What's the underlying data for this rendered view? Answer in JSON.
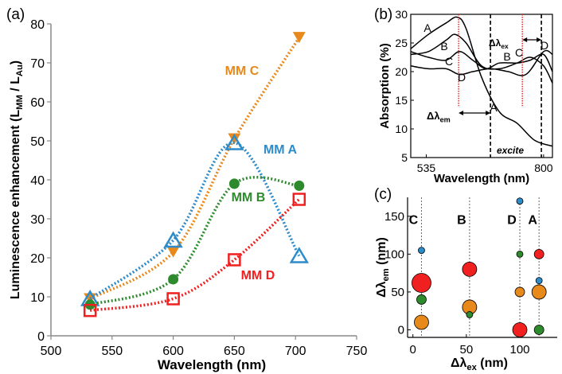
{
  "chart_data": [
    {
      "panel": "(a)",
      "type": "line",
      "title": "",
      "xlabel": "Wavelength (nm)",
      "ylabel": "Luminescence enhancement (L",
      "ylabel_sub1": "MM",
      "ylabel_mid": " / L",
      "ylabel_sub2": "Au",
      "ylabel_end": ")",
      "xlim": [
        500,
        750
      ],
      "ylim": [
        0,
        80
      ],
      "xticks": [
        "500",
        "550",
        "600",
        "650",
        "700",
        "750"
      ],
      "yticks": [
        "0",
        "10",
        "20",
        "30",
        "40",
        "50",
        "60",
        "70",
        "80"
      ],
      "series": [
        {
          "name": "MM C",
          "color": "#E8891B",
          "marker": "triangle-down",
          "x": [
            532,
            600,
            650,
            703
          ],
          "y": [
            9.5,
            21.5,
            50.5,
            76.5
          ]
        },
        {
          "name": "MM A",
          "color": "#2E8BC9",
          "marker": "triangle-up-open",
          "x": [
            532,
            600,
            650,
            703
          ],
          "y": [
            9.5,
            24.5,
            49.5,
            20.5
          ]
        },
        {
          "name": "MM B",
          "color": "#2D8A2D",
          "marker": "circle",
          "x": [
            532,
            600,
            650,
            703
          ],
          "y": [
            8.0,
            14.5,
            39.0,
            38.5
          ]
        },
        {
          "name": "MM D",
          "color": "#F02020",
          "marker": "square-open",
          "x": [
            532,
            600,
            650,
            703
          ],
          "y": [
            6.5,
            9.5,
            19.5,
            35.0
          ]
        }
      ]
    },
    {
      "panel": "(b)",
      "type": "line",
      "xlabel": "Wavelength (nm)",
      "ylabel": "Absorption (%)",
      "xlim": [
        500,
        820
      ],
      "ylim": [
        5,
        30
      ],
      "xticks": [
        "535",
        "800"
      ],
      "yticks": [
        "5",
        "10",
        "15",
        "20",
        "25",
        "30"
      ],
      "curve_labels": [
        "A",
        "B",
        "C",
        "D"
      ],
      "series": [
        {
          "name": "A",
          "x": [
            500,
            540,
            580,
            605,
            625,
            660,
            700,
            740,
            780,
            820
          ],
          "y": [
            24,
            26.5,
            28.5,
            29.5,
            27.5,
            19,
            13,
            11,
            8,
            7
          ]
        },
        {
          "name": "B",
          "x": [
            500,
            540,
            580,
            600,
            625,
            660,
            700,
            740,
            770,
            800,
            820
          ],
          "y": [
            23,
            23.5,
            25.5,
            26.5,
            25,
            21,
            20.5,
            21.5,
            22.5,
            21,
            18
          ]
        },
        {
          "name": "C",
          "x": [
            500,
            540,
            580,
            610,
            640,
            670,
            700,
            740,
            770,
            800,
            820
          ],
          "y": [
            23.5,
            22.5,
            22,
            23.5,
            22,
            20.5,
            21.5,
            21.5,
            22,
            23,
            20
          ]
        },
        {
          "name": "D",
          "x": [
            500,
            540,
            580,
            610,
            640,
            680,
            720,
            760,
            800,
            820
          ],
          "y": [
            21,
            20.5,
            20.5,
            19.5,
            20,
            20.5,
            20,
            19.5,
            23.5,
            23
          ]
        }
      ],
      "red_dotted_lines_x": [
        608,
        752
      ],
      "black_dashed_lines_x": [
        680,
        795
      ],
      "annotations": {
        "delta_em": "Δλ",
        "delta_em_sub": "em",
        "delta_ex": "Δλ",
        "delta_ex_sub": "ex",
        "excite": "excite"
      }
    },
    {
      "panel": "(c)",
      "type": "scatter",
      "xlabel": "Δλ",
      "xlabel_sub": "ex",
      "xlabel_end": " (nm)",
      "ylabel": "Δλ",
      "ylabel_sub": "em",
      "ylabel_end": " (nm)",
      "xlim": [
        -5,
        135
      ],
      "ylim": [
        -10,
        175
      ],
      "xticks": [
        "0",
        "50",
        "100"
      ],
      "yticks": [
        "0",
        "50",
        "100",
        "150"
      ],
      "group_labels": [
        {
          "label": "C",
          "x": 8
        },
        {
          "label": "B",
          "x": 53
        },
        {
          "label": "D",
          "x": 100
        },
        {
          "label": "A",
          "x": 118
        }
      ],
      "points": [
        {
          "group": "C",
          "x": 8,
          "y": 105,
          "size": 1,
          "color": "#2E8BC9"
        },
        {
          "group": "C",
          "x": 8,
          "y": 62,
          "size": 4,
          "color": "#F02020"
        },
        {
          "group": "C",
          "x": 8,
          "y": 40,
          "size": 2,
          "color": "#2D8A2D"
        },
        {
          "group": "C",
          "x": 8,
          "y": 10,
          "size": 3,
          "color": "#E8891B"
        },
        {
          "group": "B",
          "x": 53,
          "y": 85,
          "size": 1,
          "color": "#2E8BC9"
        },
        {
          "group": "B",
          "x": 53,
          "y": 80,
          "size": 3,
          "color": "#F02020"
        },
        {
          "group": "B",
          "x": 53,
          "y": 30,
          "size": 3,
          "color": "#E8891B"
        },
        {
          "group": "B",
          "x": 53,
          "y": 20,
          "size": 1,
          "color": "#2D8A2D"
        },
        {
          "group": "D",
          "x": 100,
          "y": 170,
          "size": 1,
          "color": "#2E8BC9"
        },
        {
          "group": "D",
          "x": 100,
          "y": 100,
          "size": 1,
          "color": "#2D8A2D"
        },
        {
          "group": "D",
          "x": 100,
          "y": 50,
          "size": 2,
          "color": "#E8891B"
        },
        {
          "group": "D",
          "x": 100,
          "y": 0,
          "size": 3,
          "color": "#F02020"
        },
        {
          "group": "A",
          "x": 118,
          "y": 100,
          "size": 2,
          "color": "#F02020"
        },
        {
          "group": "A",
          "x": 118,
          "y": 65,
          "size": 1,
          "color": "#2E8BC9"
        },
        {
          "group": "A",
          "x": 118,
          "y": 50,
          "size": 3,
          "color": "#E8891B"
        },
        {
          "group": "A",
          "x": 118,
          "y": 0,
          "size": 2,
          "color": "#2D8A2D"
        }
      ]
    }
  ]
}
